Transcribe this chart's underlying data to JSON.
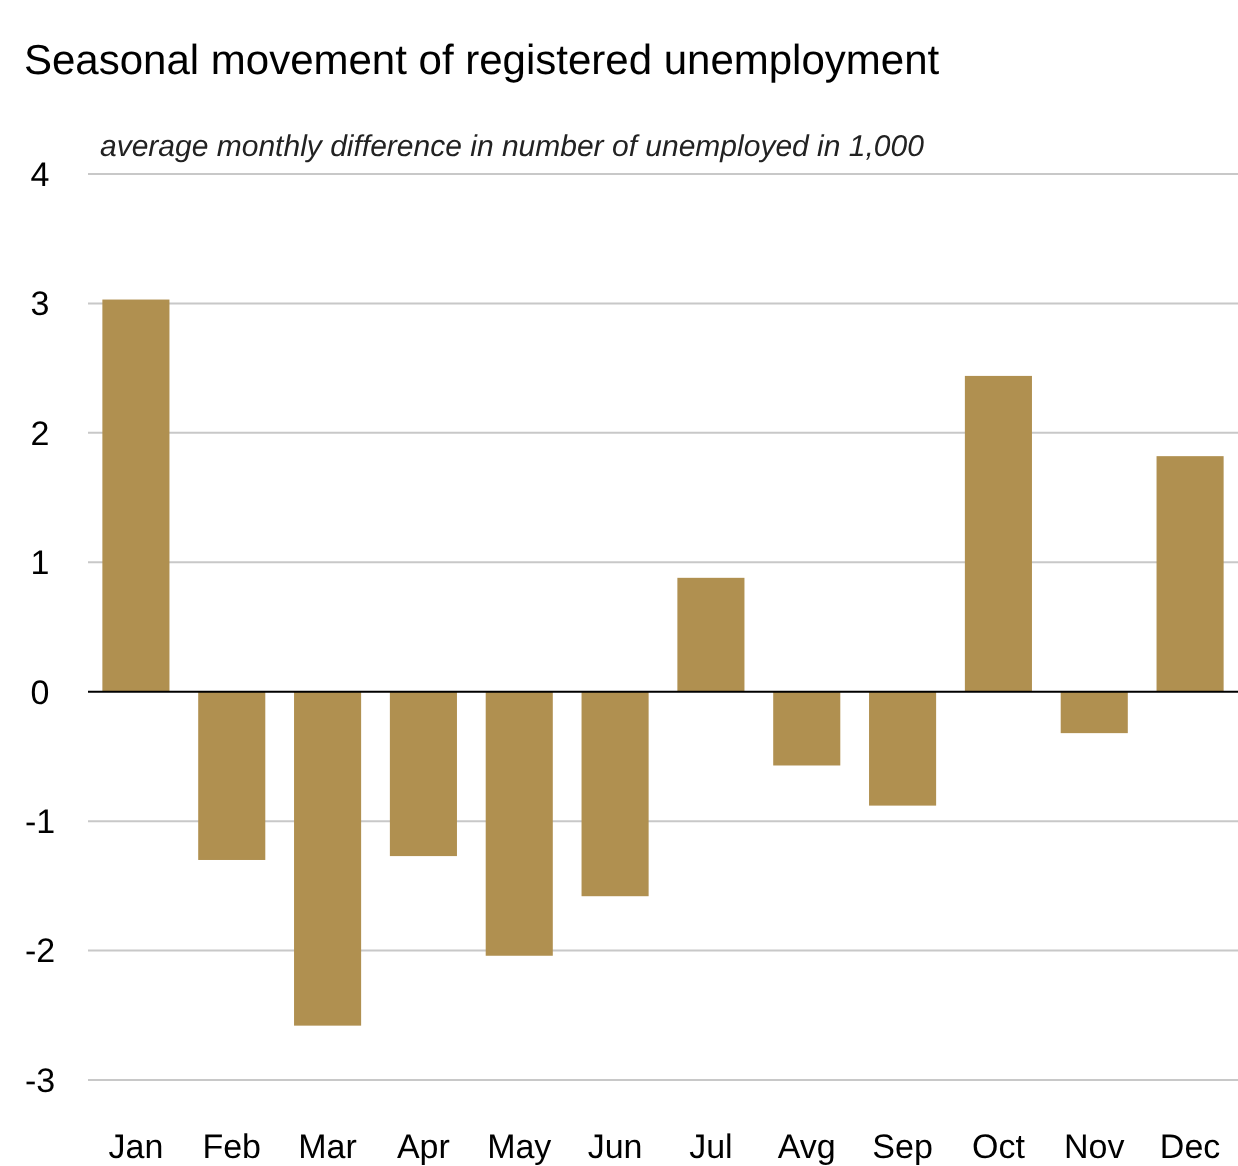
{
  "chart_data": {
    "type": "bar",
    "title": "Seasonal movement of registered unemployment",
    "subtitle": "average monthly difference in number of unemployed in 1,000",
    "categories": [
      "Jan",
      "Feb",
      "Mar",
      "Apr",
      "May",
      "Jun",
      "Jul",
      "Avg",
      "Sep",
      "Oct",
      "Nov",
      "Dec"
    ],
    "values": [
      3.03,
      -1.3,
      -2.58,
      -1.27,
      -2.04,
      -1.58,
      0.88,
      -0.57,
      -0.88,
      2.44,
      -0.32,
      1.82
    ],
    "color": "#b09050",
    "ylim": [
      -3,
      4
    ],
    "yticks": [
      -3,
      -2,
      -1,
      0,
      1,
      2,
      3,
      4
    ],
    "grid": "y"
  }
}
